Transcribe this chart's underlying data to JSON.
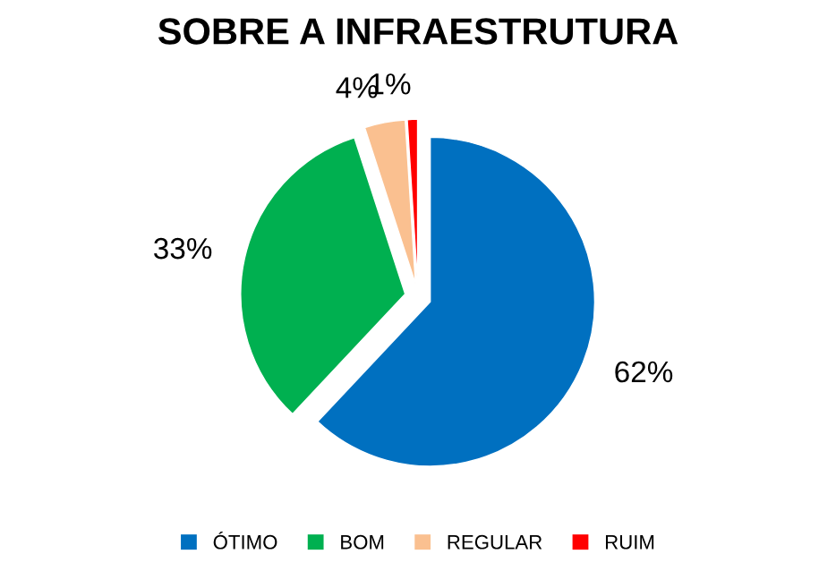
{
  "chart_data": {
    "type": "pie",
    "title": "SOBRE A INFRAESTRUTURA",
    "categories": [
      "ÓTIMO",
      "BOM",
      "REGULAR",
      "RUIM"
    ],
    "values": [
      62,
      33,
      4,
      1
    ],
    "value_labels": [
      "62%",
      "33%",
      "4%",
      "1%"
    ],
    "colors": [
      "#0070c0",
      "#00b050",
      "#fac090",
      "#ff0000"
    ],
    "legend": "bottom"
  }
}
